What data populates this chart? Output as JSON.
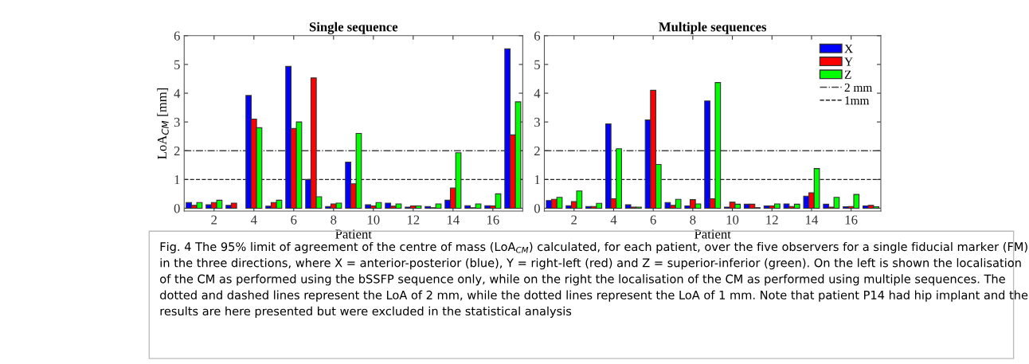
{
  "chart_data": [
    {
      "type": "bar",
      "title": "Single sequence",
      "xlabel": "Patient",
      "ylabel": "LoA$_{CM}$ [mm]",
      "x": [
        1,
        2,
        3,
        4,
        5,
        6,
        7,
        8,
        9,
        10,
        11,
        12,
        13,
        14,
        15,
        16,
        17
      ],
      "series": [
        {
          "color": "#0000ff",
          "values": [
            0.2,
            0.12,
            0.1,
            3.92,
            0.07,
            4.93,
            1.0,
            0.06,
            1.6,
            0.12,
            0.18,
            0.04,
            0.06,
            0.28,
            0.09,
            0.09,
            5.54
          ]
        },
        {
          "color": "#ff0000",
          "values": [
            0.1,
            0.2,
            0.18,
            3.1,
            0.2,
            2.77,
            4.53,
            0.15,
            0.85,
            0.08,
            0.07,
            0.08,
            0.02,
            0.7,
            0.02,
            0.08,
            2.55
          ]
        },
        {
          "color": "#00ff00",
          "values": [
            0.2,
            0.28,
            null,
            2.8,
            0.28,
            3.0,
            0.4,
            0.18,
            2.6,
            0.2,
            0.15,
            0.08,
            0.15,
            1.93,
            0.15,
            0.5,
            3.7
          ]
        }
      ],
      "xlim": [
        0.5,
        17.5
      ],
      "xticks": [
        2,
        4,
        6,
        8,
        10,
        12,
        14,
        16
      ],
      "ylim": [
        -0.1,
        6
      ],
      "yticks": [
        0,
        1,
        2,
        3,
        4,
        5,
        6
      ],
      "ref_lines": [
        {
          "axis": "y",
          "value": 2,
          "color": "#444444",
          "line_style": "dashdot"
        },
        {
          "axis": "y",
          "value": 1,
          "color": "#222222",
          "line_style": "dashed"
        }
      ],
      "grid": false
    },
    {
      "type": "bar",
      "title": "Multiple sequences",
      "xlabel": "Patient",
      "x": [
        1,
        2,
        3,
        4,
        5,
        6,
        7,
        8,
        9,
        10,
        11,
        12,
        13,
        14,
        15,
        16,
        17
      ],
      "series": [
        {
          "name": "X",
          "color": "#0000ff",
          "values": [
            0.27,
            0.09,
            0.06,
            2.93,
            0.12,
            3.07,
            0.2,
            0.08,
            3.73,
            0.04,
            0.14,
            0.08,
            0.15,
            0.42,
            0.14,
            0.05,
            0.08
          ]
        },
        {
          "name": "Y",
          "color": "#ff0000",
          "values": [
            0.31,
            0.23,
            0.06,
            0.33,
            0.04,
            4.1,
            0.1,
            0.3,
            0.33,
            0.21,
            0.14,
            0.08,
            0.06,
            0.54,
            0.04,
            0.06,
            0.1
          ]
        },
        {
          "name": "Z",
          "color": "#00ff00",
          "values": [
            0.38,
            0.6,
            0.17,
            2.07,
            0.04,
            1.52,
            0.31,
            0.15,
            4.37,
            0.14,
            0.02,
            0.15,
            0.14,
            1.38,
            0.38,
            0.48,
            0.05
          ]
        }
      ],
      "xlim": [
        0.5,
        17.5
      ],
      "xticks": [
        2,
        4,
        6,
        8,
        10,
        12,
        14,
        16
      ],
      "ylim": [
        -0.1,
        6
      ],
      "yticks": [
        0,
        1,
        2,
        3,
        4,
        5,
        6
      ],
      "ref_lines": [
        {
          "axis": "y",
          "value": 2,
          "label": "2 mm",
          "color": "#444444",
          "line_style": "dashdot"
        },
        {
          "axis": "y",
          "value": 1,
          "label": "1mm",
          "color": "#222222",
          "line_style": "dashed"
        }
      ],
      "grid": false,
      "legend": "top right",
      "annotations": [
        "Fig. 4 The 95% limit of agreement of the centre of mass (LoA$_{CM}$) calculated, for each patient, over the five observers for a single fiducial marker (FM) in the three directions, where X = anterior-posterior (blue), Y = right-left (red) and Z = superior-inferior (green). On the left is shown the localisation of the CM as performed using the bSSFP sequence only, while on the right the localisation of the CM as performed using multiple sequences. The dotted and dashed lines represent the LoA of 2 mm, while the dotted lines represent the LoA of 1 mm. Note that patient P14 had hip implant and the results are here presented but were excluded in the statistical analysis"
      ]
    }
  ]
}
